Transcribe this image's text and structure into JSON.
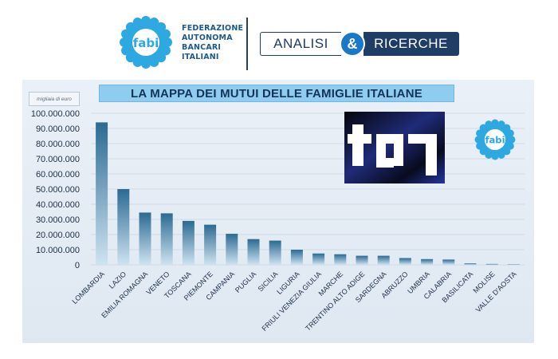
{
  "header": {
    "org_lines": [
      "FEDERAZIONE",
      "AUTONOMA",
      "BANCARI",
      "ITALIANI"
    ],
    "logo_text": "fabi",
    "banner_left": "ANALISI",
    "banner_amp": "&",
    "banner_right": "RICERCHE"
  },
  "colors": {
    "bar_top": "#2c6a92",
    "bar_bottom": "#cfe3f1",
    "title_bg": "#8fcdf0",
    "brand": "#1d5a8c"
  },
  "chart_data": {
    "type": "bar",
    "title": "LA MAPPA DEI MUTUI DELLE FAMIGLIE ITALIANE",
    "unit_label": "migliaia di euro",
    "xlabel": "",
    "ylabel": "",
    "ylim": [
      0,
      100000000
    ],
    "yticks": [
      0,
      10000000,
      20000000,
      30000000,
      40000000,
      50000000,
      60000000,
      70000000,
      80000000,
      90000000,
      100000000
    ],
    "ytick_labels": [
      "0",
      "10.000.000",
      "20.000.000",
      "30.000.000",
      "40.000.000",
      "50.000.000",
      "60.000.000",
      "70.000.000",
      "80.000.000",
      "90.000.000",
      "100.000.000"
    ],
    "grid": true,
    "categories": [
      "LOMBARDIA",
      "LAZIO",
      "EMILIA ROMAGNA",
      "VENETO",
      "TOSCANA",
      "PIEMONTE",
      "CAMPANIA",
      "PUGLIA",
      "SICILIA",
      "LIGURIA",
      "FRIULI VENEZIA GIULIA",
      "MARCHE",
      "TRENTINO ALTO ADIGE",
      "SARDEGNA",
      "ABRUZZO",
      "UMBRIA",
      "CALABRIA",
      "BASILICATA",
      "MOLISE",
      "VALLE D'AOSTA"
    ],
    "values": [
      94000000,
      50000000,
      34500000,
      34000000,
      29000000,
      26500000,
      20500000,
      17000000,
      16000000,
      10000000,
      7500000,
      7000000,
      6000000,
      6000000,
      4500000,
      3800000,
      3500000,
      1000000,
      600000,
      300000
    ]
  }
}
